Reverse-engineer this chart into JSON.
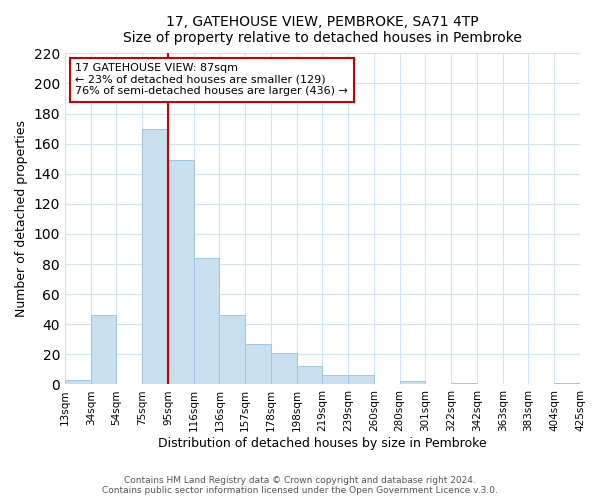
{
  "title": "17, GATEHOUSE VIEW, PEMBROKE, SA71 4TP",
  "subtitle": "Size of property relative to detached houses in Pembroke",
  "xlabel": "Distribution of detached houses by size in Pembroke",
  "ylabel": "Number of detached properties",
  "bar_color": "#c8dff0",
  "bar_edge_color": "#a0c4e0",
  "bin_labels": [
    "13sqm",
    "34sqm",
    "54sqm",
    "75sqm",
    "95sqm",
    "116sqm",
    "136sqm",
    "157sqm",
    "178sqm",
    "198sqm",
    "219sqm",
    "239sqm",
    "260sqm",
    "280sqm",
    "301sqm",
    "322sqm",
    "342sqm",
    "363sqm",
    "383sqm",
    "404sqm",
    "425sqm"
  ],
  "bar_heights": [
    3,
    46,
    0,
    170,
    149,
    84,
    46,
    27,
    21,
    12,
    6,
    6,
    0,
    2,
    0,
    1,
    0,
    0,
    0,
    1
  ],
  "ylim": [
    0,
    220
  ],
  "yticks": [
    0,
    20,
    40,
    60,
    80,
    100,
    120,
    140,
    160,
    180,
    200,
    220
  ],
  "property_line_x": 4.0,
  "annotation_title": "17 GATEHOUSE VIEW: 87sqm",
  "annotation_line1": "← 23% of detached houses are smaller (129)",
  "annotation_line2": "76% of semi-detached houses are larger (436) →",
  "footer_line1": "Contains HM Land Registry data © Crown copyright and database right 2024.",
  "footer_line2": "Contains public sector information licensed under the Open Government Licence v.3.0.",
  "grid_color": "#d0e4f5",
  "red_line_color": "#cc0000",
  "annotation_box_facecolor": "#ffffff",
  "annotation_box_edgecolor": "#cc0000"
}
